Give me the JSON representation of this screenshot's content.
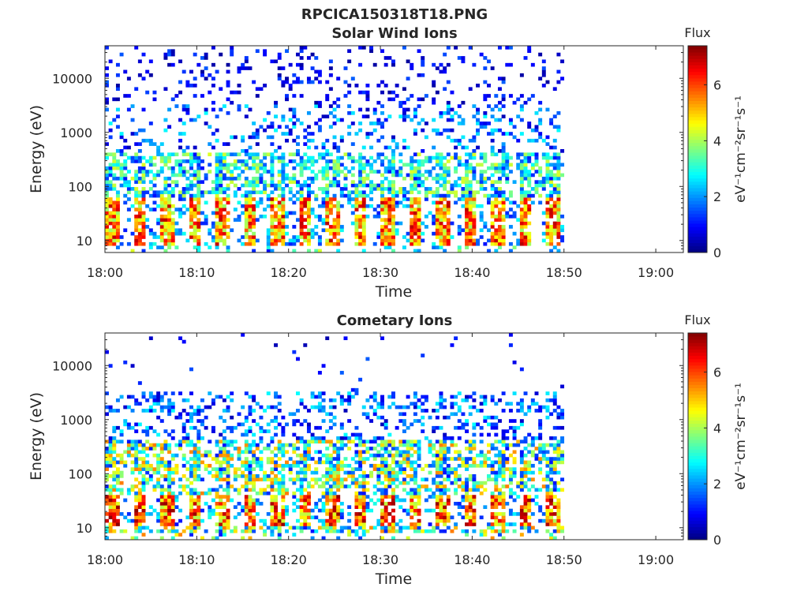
{
  "figure_title": "RPCICA150318T18.PNG",
  "chart_data": [
    {
      "type": "heatmap",
      "title": "Solar Wind Ions",
      "xlabel": "Time",
      "ylabel": "Energy (eV)",
      "x_ticks": [
        "18:00",
        "18:10",
        "18:20",
        "18:30",
        "18:40",
        "18:50",
        "19:00"
      ],
      "xlim": [
        "18:00",
        "19:03"
      ],
      "data_end": "18:50",
      "y_ticks": [
        "10",
        "100",
        "1000",
        "10000"
      ],
      "ylim": [
        6,
        40000
      ],
      "y_scale": "log",
      "colorbar": {
        "title": "Flux",
        "label": "eV⁻¹cm⁻²sr⁻¹s⁻¹",
        "ticks": [
          "0",
          "2",
          "4",
          "6"
        ],
        "range": [
          0,
          7.4
        ],
        "colormap": "jet"
      },
      "pattern": {
        "seed": 17,
        "background_max_flux": 3.4,
        "high_flux_band_eV": [
          8,
          60
        ],
        "high_flux_max": 7,
        "burst_period_min": 3,
        "upper_energy_coverage": "sparse"
      }
    },
    {
      "type": "heatmap",
      "title": "Cometary Ions",
      "xlabel": "Time",
      "ylabel": "Energy (eV)",
      "x_ticks": [
        "18:00",
        "18:10",
        "18:20",
        "18:30",
        "18:40",
        "18:50",
        "19:00"
      ],
      "xlim": [
        "18:00",
        "19:03"
      ],
      "data_end": "18:50",
      "y_ticks": [
        "10",
        "100",
        "1000",
        "10000"
      ],
      "ylim": [
        6,
        40000
      ],
      "y_scale": "log",
      "colorbar": {
        "title": "Flux",
        "label": "eV⁻¹cm⁻²sr⁻¹s⁻¹",
        "ticks": [
          "0",
          "2",
          "4",
          "6"
        ],
        "range": [
          0,
          7.4
        ],
        "colormap": "jet"
      },
      "pattern": {
        "seed": 42,
        "background_max_flux": 4.6,
        "high_flux_band_eV": [
          10,
          35
        ],
        "high_flux_max": 7.3,
        "burst_period_min": 3,
        "upper_energy_coverage": "medium"
      }
    }
  ]
}
